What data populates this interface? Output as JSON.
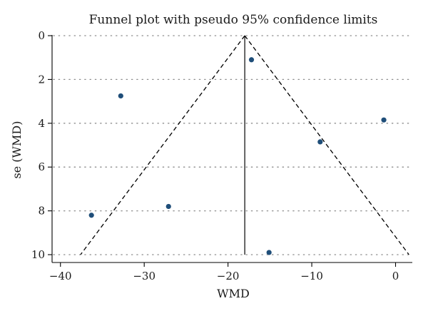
{
  "chart_data": {
    "type": "scatter",
    "title": "Funnel plot with pseudo 95% confidence limits",
    "xlabel": "WMD",
    "ylabel": "se (WMD)",
    "xlim": [
      -41,
      2
    ],
    "ylim": [
      0,
      10
    ],
    "y_reversed": true,
    "x_ticks": [
      -40,
      -30,
      -20,
      -10,
      0
    ],
    "y_ticks": [
      0,
      2,
      4,
      6,
      8,
      10
    ],
    "grid": "horizontal dotted",
    "pooled_estimate": -18,
    "pseudo_ci_se_max": 10,
    "colors": {
      "points": "#1f4e79",
      "lines": "#000000",
      "grid": "#8c8c8c"
    },
    "points": [
      {
        "x": -17.2,
        "y": 1.1
      },
      {
        "x": -32.8,
        "y": 2.75
      },
      {
        "x": -1.4,
        "y": 3.85
      },
      {
        "x": -9.0,
        "y": 4.85
      },
      {
        "x": -27.1,
        "y": 7.8
      },
      {
        "x": -36.3,
        "y": 8.2
      },
      {
        "x": -15.1,
        "y": 9.9
      }
    ]
  }
}
